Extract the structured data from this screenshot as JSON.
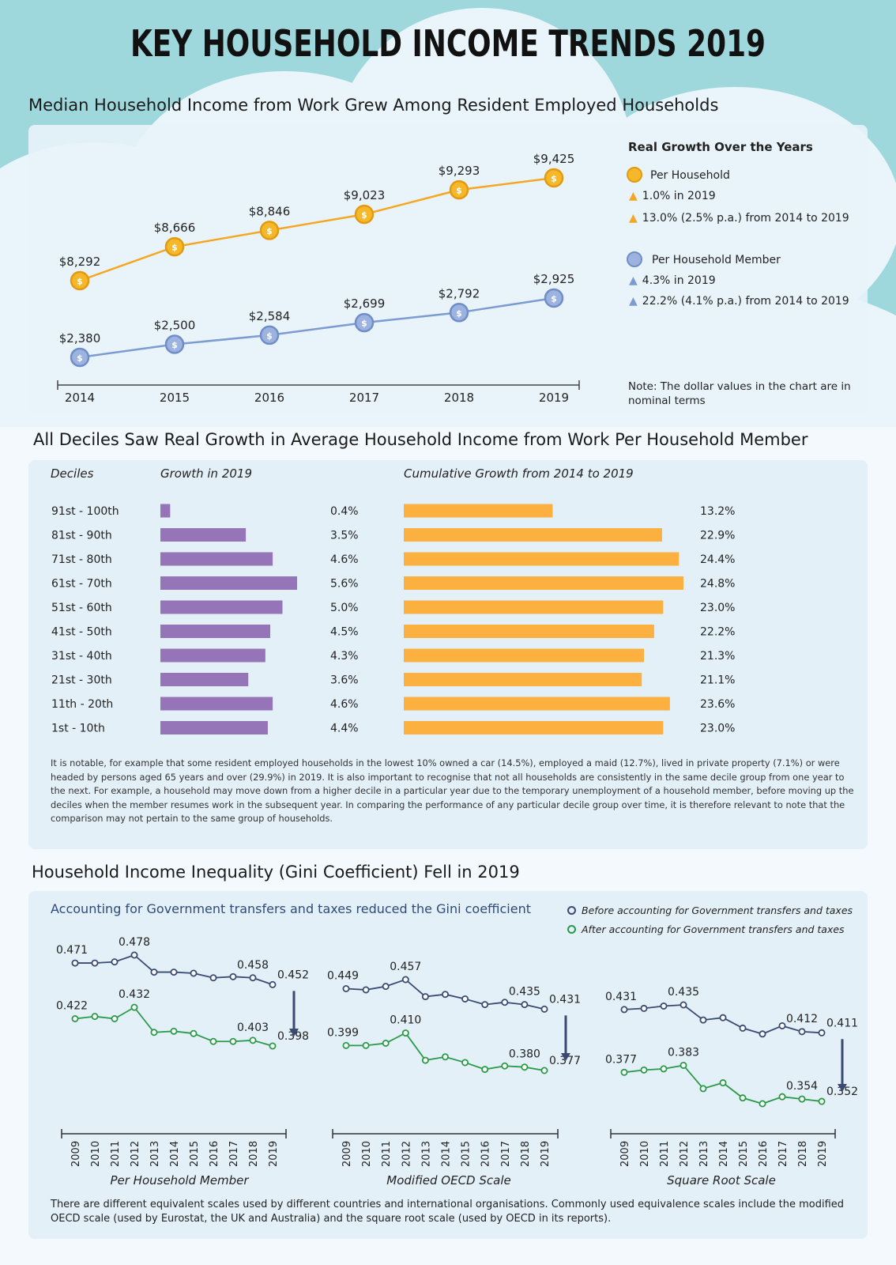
{
  "title": "KEY HOUSEHOLD INCOME TRENDS 2019",
  "section1": {
    "title": "Median Household Income from Work Grew Among Resident Employed Households",
    "legend_title": "Real Growth Over the Years",
    "per_household": {
      "label": "Per Household",
      "growth_2019": "1.0% in 2019",
      "growth_period": "13.0% (2.5% p.a.) from 2014 to 2019"
    },
    "per_member": {
      "label": "Per Household Member",
      "growth_2019": "4.3% in 2019",
      "growth_period": "22.2% (4.1% p.a.) from 2014 to 2019"
    },
    "note": "Note: The dollar values in the chart are in nominal terms"
  },
  "section2": {
    "title": "All Deciles Saw Real Growth in Average Household Income from Work Per Household Member",
    "col_deciles": "Deciles",
    "col_growth": "Growth in 2019",
    "col_cumulative": "Cumulative Growth from 2014 to 2019",
    "paragraph": "It is notable, for example that some resident employed households in the lowest 10% owned a car (14.5%), employed a maid (12.7%), lived in private property (7.1%) or were headed by persons aged 65 years and over (29.9%) in 2019. It is also important to recognise that not all households are consistently in the same decile group from one year to the next. For example, a household may move down from a higher decile in a particular year due to the temporary unemployment of a household member, before moving up the deciles when the member resumes work in the subsequent year. In comparing the performance of any particular decile group over time, it is therefore relevant to note that the comparison may not pertain to the same group of households."
  },
  "section3": {
    "title": "Household Income Inequality (Gini Coefficient) Fell in 2019",
    "subtitle": "Accounting for Government transfers and taxes reduced the Gini coefficient",
    "legend_before": "Before accounting for Government transfers and taxes",
    "legend_after": "After accounting for Government transfers and taxes",
    "scale1": "Per Household Member",
    "scale2": "Modified OECD Scale",
    "scale3": "Square Root Scale",
    "footnote": "There are different equivalent scales used by different countries and international organisations. Commonly used equivalence scales include the modified OECD scale (used by Eurostat, the UK and Australia) and the square root scale (used by OECD in its reports)."
  },
  "colors": {
    "gold": "#f5a623",
    "blue": "#7b9bd1",
    "purple": "#9575b8",
    "orange": "#fbb040",
    "navy": "#3a4a72",
    "green": "#2a9a48"
  },
  "chart_data": [
    {
      "type": "line",
      "x": [
        "2014",
        "2015",
        "2016",
        "2017",
        "2018",
        "2019"
      ],
      "series": [
        {
          "name": "Per Household",
          "values": [
            8292,
            8666,
            8846,
            9023,
            9293,
            9425
          ],
          "labels": [
            "$8,292",
            "$8,666",
            "$8,846",
            "$9,023",
            "$9,293",
            "$9,425"
          ]
        },
        {
          "name": "Per Household Member",
          "values": [
            2380,
            2500,
            2584,
            2699,
            2792,
            2925
          ],
          "labels": [
            "$2,380",
            "$2,500",
            "$2,584",
            "$2,699",
            "$2,792",
            "$2,925"
          ]
        }
      ]
    },
    {
      "type": "bar",
      "categories": [
        "91st - 100th",
        "81st - 90th",
        "71st - 80th",
        "61st - 70th",
        "51st - 60th",
        "41st - 50th",
        "31st - 40th",
        "21st - 30th",
        "11th - 20th",
        "1st - 10th"
      ],
      "series": [
        {
          "name": "Growth in 2019",
          "values": [
            0.4,
            3.5,
            4.6,
            5.6,
            5.0,
            4.5,
            4.3,
            3.6,
            4.6,
            4.4
          ],
          "labels": [
            "0.4%",
            "3.5%",
            "4.6%",
            "5.6%",
            "5.0%",
            "4.5%",
            "4.3%",
            "3.6%",
            "4.6%",
            "4.4%"
          ]
        },
        {
          "name": "Cumulative Growth from 2014 to 2019",
          "values": [
            13.2,
            22.9,
            24.4,
            24.8,
            23.0,
            22.2,
            21.3,
            21.1,
            23.6,
            23.0
          ],
          "labels": [
            "13.2%",
            "22.9%",
            "24.4%",
            "24.8%",
            "23.0%",
            "22.2%",
            "21.3%",
            "21.1%",
            "23.6%",
            "23.0%"
          ]
        }
      ]
    },
    {
      "type": "line",
      "title": "Per Household Member",
      "x": [
        "2009",
        "2010",
        "2011",
        "2012",
        "2013",
        "2014",
        "2015",
        "2016",
        "2017",
        "2018",
        "2019"
      ],
      "series": [
        {
          "name": "Before accounting for Government transfers and taxes",
          "values": [
            0.471,
            0.471,
            0.472,
            0.478,
            0.463,
            0.463,
            0.462,
            0.458,
            0.459,
            0.458,
            0.452
          ]
        },
        {
          "name": "After accounting for Government transfers and taxes",
          "values": [
            0.422,
            0.424,
            0.422,
            0.432,
            0.41,
            0.411,
            0.409,
            0.402,
            0.402,
            0.403,
            0.398
          ]
        }
      ],
      "labels": {
        "before": [
          [
            0,
            "0.471"
          ],
          [
            3,
            "0.478"
          ],
          [
            9,
            "0.458"
          ],
          [
            10,
            "0.452"
          ]
        ],
        "after": [
          [
            0,
            "0.422"
          ],
          [
            3,
            "0.432"
          ],
          [
            9,
            "0.403"
          ],
          [
            10,
            "0.398"
          ]
        ]
      }
    },
    {
      "type": "line",
      "title": "Modified OECD Scale",
      "x": [
        "2009",
        "2010",
        "2011",
        "2012",
        "2013",
        "2014",
        "2015",
        "2016",
        "2017",
        "2018",
        "2019"
      ],
      "series": [
        {
          "name": "Before accounting for Government transfers and taxes",
          "values": [
            0.449,
            0.448,
            0.451,
            0.457,
            0.442,
            0.444,
            0.44,
            0.435,
            0.437,
            0.435,
            0.431
          ]
        },
        {
          "name": "After accounting for Government transfers and taxes",
          "values": [
            0.399,
            0.399,
            0.401,
            0.41,
            0.386,
            0.389,
            0.384,
            0.378,
            0.381,
            0.38,
            0.377
          ]
        }
      ],
      "labels": {
        "before": [
          [
            0,
            "0.449"
          ],
          [
            3,
            "0.457"
          ],
          [
            9,
            "0.435"
          ],
          [
            10,
            "0.431"
          ]
        ],
        "after": [
          [
            0,
            "0.399"
          ],
          [
            3,
            "0.410"
          ],
          [
            9,
            "0.380"
          ],
          [
            10,
            "0.377"
          ]
        ]
      }
    },
    {
      "type": "line",
      "title": "Square Root Scale",
      "x": [
        "2009",
        "2010",
        "2011",
        "2012",
        "2013",
        "2014",
        "2015",
        "2016",
        "2017",
        "2018",
        "2019"
      ],
      "series": [
        {
          "name": "Before accounting for Government transfers and taxes",
          "values": [
            0.431,
            0.432,
            0.434,
            0.435,
            0.422,
            0.424,
            0.415,
            0.41,
            0.417,
            0.412,
            0.411
          ]
        },
        {
          "name": "After accounting for Government transfers and taxes",
          "values": [
            0.377,
            0.379,
            0.38,
            0.383,
            0.363,
            0.368,
            0.355,
            0.35,
            0.356,
            0.354,
            0.352
          ]
        }
      ],
      "labels": {
        "before": [
          [
            0,
            "0.431"
          ],
          [
            3,
            "0.435"
          ],
          [
            9,
            "0.412"
          ],
          [
            10,
            "0.411"
          ]
        ],
        "after": [
          [
            0,
            "0.377"
          ],
          [
            3,
            "0.383"
          ],
          [
            9,
            "0.354"
          ],
          [
            10,
            "0.352"
          ]
        ]
      }
    }
  ]
}
